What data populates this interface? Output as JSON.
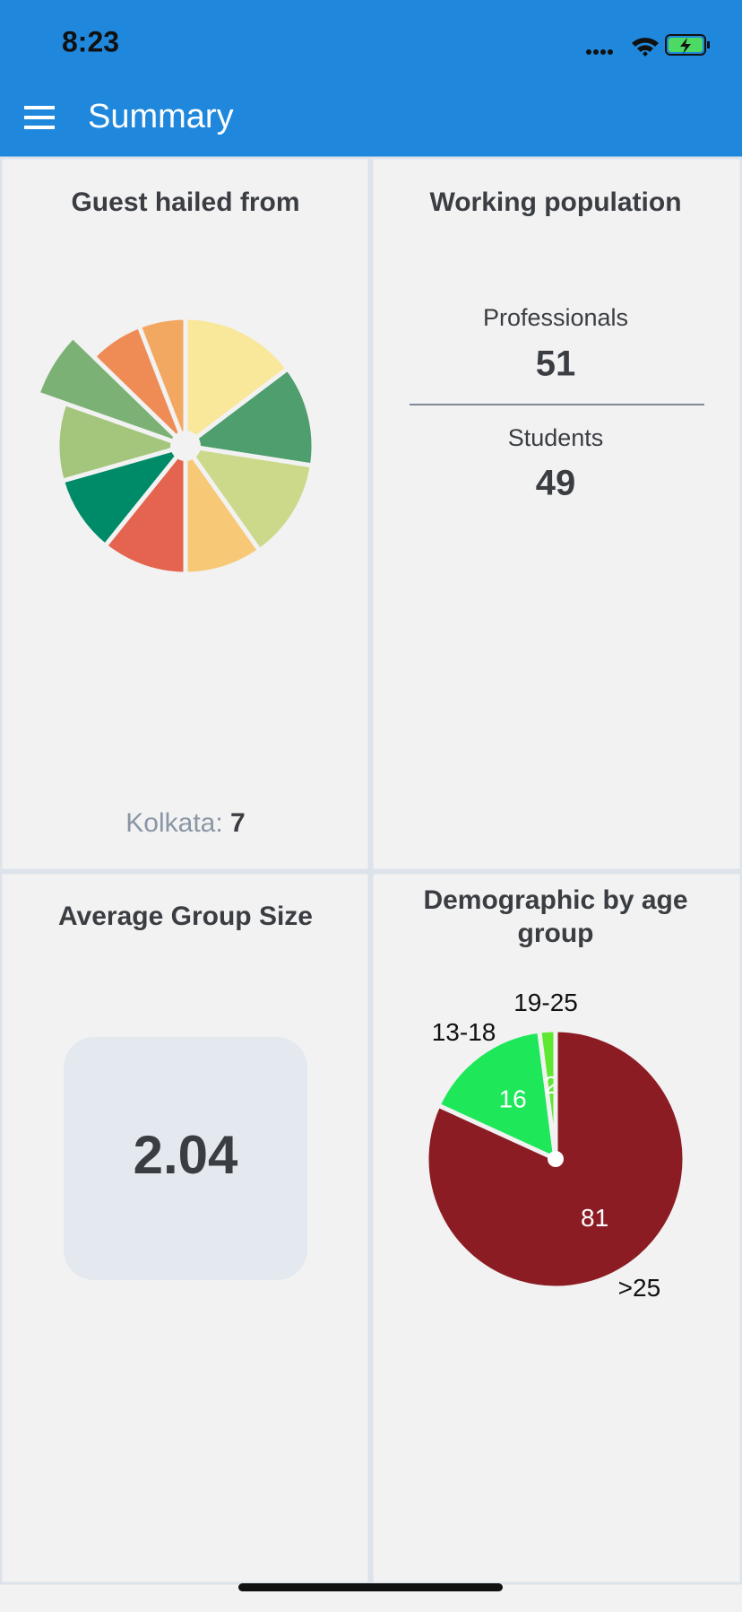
{
  "status_bar": {
    "time": "8:23"
  },
  "header": {
    "title": "Summary"
  },
  "cards": {
    "guests": {
      "title": "Guest hailed from",
      "chart_data": {
        "type": "pie",
        "values": [
          15,
          13,
          13,
          10,
          11,
          10,
          10,
          7,
          7,
          6
        ],
        "colors": [
          "#f9e79a",
          "#4e9e6e",
          "#cdd98a",
          "#f7c977",
          "#e4644f",
          "#008b68",
          "#a3c57c",
          "#7bb174",
          "#ef8c56",
          "#f3a862"
        ],
        "highlight_index": 7,
        "highlight_label": "Kolkata:"
      }
    },
    "working": {
      "items": [
        {
          "label": "Professionals",
          "value": 51
        },
        {
          "label": "Students",
          "value": 49
        }
      ],
      "title": "Working population"
    },
    "group": {
      "title": "Average Group Size",
      "value": 2.04
    },
    "age": {
      "chart_data": {
        "type": "pie",
        "title": "Demographic by age group",
        "categories": [
          "13-18",
          "19-25",
          ">25"
        ],
        "values": [
          16,
          2,
          81
        ],
        "colors": [
          "#1ee85a",
          "#5ee832",
          "#8c1c24"
        ]
      }
    }
  }
}
